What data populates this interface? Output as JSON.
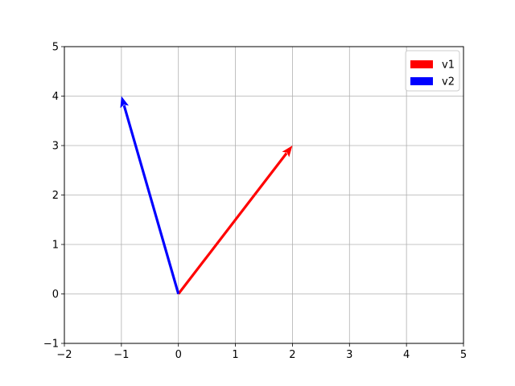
{
  "chart_data": {
    "type": "vector",
    "title": "",
    "xlabel": "",
    "ylabel": "",
    "xlim": [
      -2,
      5
    ],
    "ylim": [
      -1,
      5
    ],
    "xticks": [
      -2,
      -1,
      0,
      1,
      2,
      3,
      4,
      5
    ],
    "yticks": [
      -1,
      0,
      1,
      2,
      3,
      4,
      5
    ],
    "x_tick_labels": [
      "−2",
      "−1",
      "0",
      "1",
      "2",
      "3",
      "4",
      "5"
    ],
    "y_tick_labels": [
      "−1",
      "0",
      "1",
      "2",
      "3",
      "4",
      "5"
    ],
    "grid": true,
    "legend_position": "top-right",
    "series": [
      {
        "name": "v1",
        "origin": [
          0,
          0
        ],
        "vector": [
          2,
          3
        ],
        "color": "#ff0000"
      },
      {
        "name": "v2",
        "origin": [
          0,
          0
        ],
        "vector": [
          -1,
          4
        ],
        "color": "#0000ff"
      }
    ]
  }
}
